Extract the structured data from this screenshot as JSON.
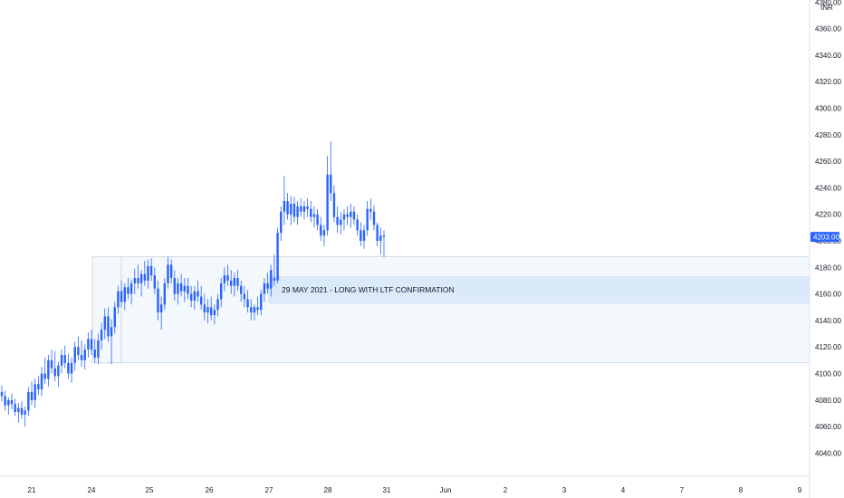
{
  "chart_data": {
    "type": "candlestick",
    "currency": "INR",
    "y_axis": {
      "ticks": [
        "4040.00",
        "4060.00",
        "4080.00",
        "4100.00",
        "4120.00",
        "4140.00",
        "4160.00",
        "4180.00",
        "4200.00",
        "4220.00",
        "4240.00",
        "4260.00",
        "4280.00",
        "4300.00",
        "4320.00",
        "4340.00",
        "4360.00",
        "4380.00"
      ],
      "ylim": [
        4030,
        4385
      ]
    },
    "x_axis": {
      "ticks": [
        "21",
        "24",
        "25",
        "26",
        "27",
        "28",
        "31",
        "Jun",
        "2",
        "3",
        "4",
        "7",
        "8",
        "9"
      ]
    },
    "last_price": "4203.00",
    "annotation": "29 MAY 2021 - LONG WITH LTF CONFIRMATION",
    "zones": [
      {
        "name": "range-zone",
        "y_from": 4108,
        "y_to": 4188
      },
      {
        "name": "demand-zone",
        "y_from": 4153,
        "y_to": 4173
      }
    ],
    "candles": [
      [
        4086,
        4091,
        4079,
        4083
      ],
      [
        4083,
        4087,
        4072,
        4076
      ],
      [
        4076,
        4082,
        4069,
        4080
      ],
      [
        4080,
        4085,
        4073,
        4077
      ],
      [
        4077,
        4081,
        4068,
        4071
      ],
      [
        4071,
        4078,
        4063,
        4074
      ],
      [
        4074,
        4079,
        4066,
        4069
      ],
      [
        4069,
        4075,
        4060,
        4072
      ],
      [
        4072,
        4090,
        4068,
        4086
      ],
      [
        4086,
        4094,
        4076,
        4080
      ],
      [
        4080,
        4096,
        4074,
        4092
      ],
      [
        4092,
        4098,
        4084,
        4088
      ],
      [
        4088,
        4105,
        4083,
        4100
      ],
      [
        4100,
        4112,
        4092,
        4096
      ],
      [
        4096,
        4114,
        4090,
        4110
      ],
      [
        4110,
        4118,
        4100,
        4104
      ],
      [
        4104,
        4117,
        4094,
        4098
      ],
      [
        4098,
        4109,
        4090,
        4106
      ],
      [
        4106,
        4118,
        4100,
        4114
      ],
      [
        4114,
        4121,
        4104,
        4108
      ],
      [
        4108,
        4115,
        4096,
        4100
      ],
      [
        4100,
        4112,
        4093,
        4108
      ],
      [
        4108,
        4124,
        4102,
        4120
      ],
      [
        4120,
        4128,
        4110,
        4114
      ],
      [
        4114,
        4125,
        4105,
        4110
      ],
      [
        4110,
        4122,
        4103,
        4118
      ],
      [
        4118,
        4131,
        4112,
        4126
      ],
      [
        4126,
        4133,
        4114,
        4118
      ],
      [
        4118,
        4126,
        4108,
        4112
      ],
      [
        4112,
        4130,
        4107,
        4125
      ],
      [
        4125,
        4138,
        4118,
        4133
      ],
      [
        4133,
        4149,
        4126,
        4143
      ],
      [
        4143,
        4150,
        4124,
        4128
      ],
      [
        4128,
        4141,
        4107,
        4135
      ],
      [
        4135,
        4154,
        4130,
        4150
      ],
      [
        4150,
        4166,
        4145,
        4162
      ],
      [
        4162,
        4170,
        4150,
        4154
      ],
      [
        4154,
        4168,
        4148,
        4165
      ],
      [
        4165,
        4172,
        4156,
        4160
      ],
      [
        4160,
        4171,
        4152,
        4168
      ],
      [
        4168,
        4179,
        4160,
        4172
      ],
      [
        4172,
        4182,
        4164,
        4168
      ],
      [
        4168,
        4178,
        4158,
        4175
      ],
      [
        4175,
        4185,
        4166,
        4170
      ],
      [
        4170,
        4186,
        4164,
        4181
      ],
      [
        4181,
        4187,
        4170,
        4174
      ],
      [
        4174,
        4180,
        4160,
        4164
      ],
      [
        4164,
        4170,
        4140,
        4146
      ],
      [
        4146,
        4158,
        4133,
        4152
      ],
      [
        4152,
        4172,
        4148,
        4168
      ],
      [
        4168,
        4188,
        4164,
        4182
      ],
      [
        4182,
        4186,
        4168,
        4172
      ],
      [
        4172,
        4178,
        4155,
        4160
      ],
      [
        4160,
        4172,
        4152,
        4168
      ],
      [
        4168,
        4175,
        4158,
        4162
      ],
      [
        4162,
        4172,
        4154,
        4166
      ],
      [
        4166,
        4172,
        4156,
        4160
      ],
      [
        4160,
        4166,
        4150,
        4155
      ],
      [
        4155,
        4166,
        4148,
        4162
      ],
      [
        4162,
        4170,
        4154,
        4158
      ],
      [
        4158,
        4166,
        4148,
        4152
      ],
      [
        4152,
        4160,
        4140,
        4146
      ],
      [
        4146,
        4156,
        4138,
        4150
      ],
      [
        4150,
        4158,
        4140,
        4144
      ],
      [
        4144,
        4152,
        4137,
        4148
      ],
      [
        4148,
        4160,
        4143,
        4156
      ],
      [
        4156,
        4172,
        4150,
        4168
      ],
      [
        4168,
        4180,
        4162,
        4174
      ],
      [
        4174,
        4182,
        4166,
        4170
      ],
      [
        4170,
        4178,
        4160,
        4166
      ],
      [
        4166,
        4176,
        4158,
        4172
      ],
      [
        4172,
        4178,
        4162,
        4166
      ],
      [
        4166,
        4170,
        4154,
        4160
      ],
      [
        4160,
        4166,
        4150,
        4156
      ],
      [
        4156,
        4163,
        4146,
        4150
      ],
      [
        4150,
        4156,
        4140,
        4146
      ],
      [
        4146,
        4152,
        4140,
        4150
      ],
      [
        4150,
        4158,
        4144,
        4148
      ],
      [
        4148,
        4163,
        4144,
        4160
      ],
      [
        4160,
        4172,
        4154,
        4168
      ],
      [
        4168,
        4176,
        4160,
        4164
      ],
      [
        4164,
        4182,
        4158,
        4178
      ],
      [
        4172,
        4190,
        4166,
        4170
      ],
      [
        4170,
        4210,
        4168,
        4206
      ],
      [
        4206,
        4226,
        4200,
        4222
      ],
      [
        4222,
        4249,
        4212,
        4230
      ],
      [
        4230,
        4236,
        4216,
        4220
      ],
      [
        4220,
        4234,
        4212,
        4228
      ],
      [
        4228,
        4233,
        4214,
        4218
      ],
      [
        4218,
        4230,
        4212,
        4226
      ],
      [
        4226,
        4232,
        4218,
        4222
      ],
      [
        4222,
        4230,
        4216,
        4226
      ],
      [
        4226,
        4232,
        4218,
        4224
      ],
      [
        4224,
        4230,
        4214,
        4218
      ],
      [
        4218,
        4226,
        4210,
        4220
      ],
      [
        4220,
        4224,
        4208,
        4212
      ],
      [
        4212,
        4218,
        4200,
        4204
      ],
      [
        4204,
        4212,
        4196,
        4208
      ],
      [
        4208,
        4264,
        4204,
        4250
      ],
      [
        4250,
        4275,
        4230,
        4236
      ],
      [
        4236,
        4242,
        4214,
        4218
      ],
      [
        4218,
        4226,
        4206,
        4212
      ],
      [
        4212,
        4222,
        4205,
        4216
      ],
      [
        4216,
        4224,
        4208,
        4220
      ],
      [
        4220,
        4226,
        4212,
        4218
      ],
      [
        4218,
        4228,
        4210,
        4222
      ],
      [
        4222,
        4226,
        4212,
        4216
      ],
      [
        4216,
        4220,
        4204,
        4208
      ],
      [
        4208,
        4214,
        4196,
        4200
      ],
      [
        4200,
        4212,
        4194,
        4208
      ],
      [
        4208,
        4230,
        4204,
        4224
      ],
      [
        4224,
        4232,
        4216,
        4222
      ],
      [
        4222,
        4227,
        4208,
        4212
      ],
      [
        4212,
        4214,
        4196,
        4200
      ],
      [
        4200,
        4210,
        4190,
        4204
      ],
      [
        4204,
        4208,
        4188,
        4203
      ]
    ]
  },
  "colors": {
    "candle": "#2962ff",
    "zone_fill": "#dbeafb",
    "range_fill": "#f3f8fd",
    "range_border": "#b6c6d6",
    "price_tag": "#2962ff",
    "axis_line": "#e0e3eb"
  }
}
